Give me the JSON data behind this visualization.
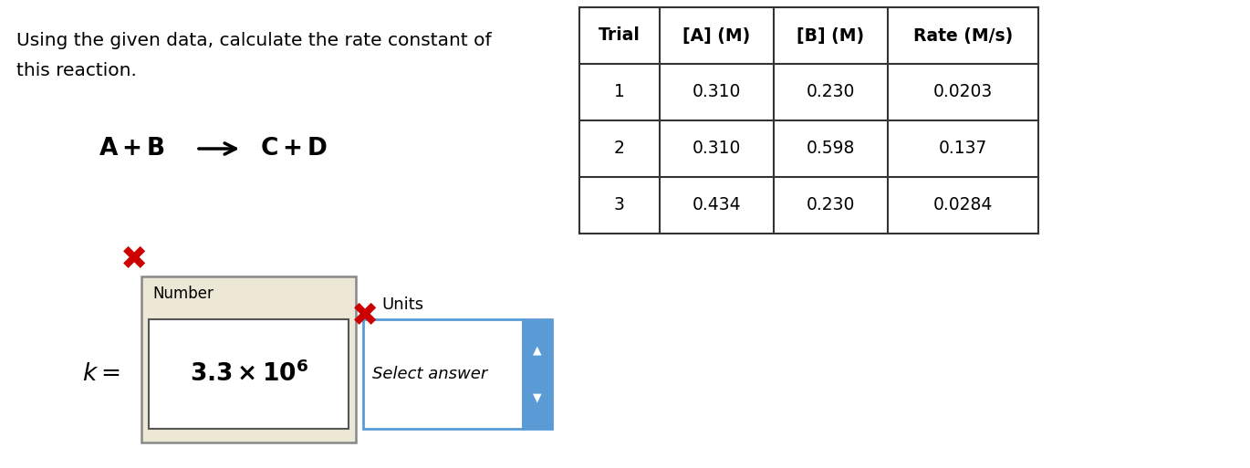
{
  "question_line1": "Using the given data, calculate the rate constant of",
  "question_line2": "this reaction.",
  "table_headers": [
    "Trial",
    "[A] (M)",
    "[B] (M)",
    "Rate (M/s)"
  ],
  "table_rows": [
    [
      "1",
      "0.310",
      "0.230",
      "0.0203"
    ],
    [
      "2",
      "0.310",
      "0.598",
      "0.137"
    ],
    [
      "3",
      "0.434",
      "0.230",
      "0.0284"
    ]
  ],
  "number_label": "Number",
  "units_label": "Units",
  "select_text": "Select answer",
  "bg_color": "#ffffff",
  "number_box_bg": "#ede8d5",
  "select_box_border": "#5b9bd5",
  "arrow_button_bg": "#5b9bd5",
  "text_color": "#000000",
  "red_x_color": "#cc0000",
  "table_border_color": "#333333",
  "inner_box_border": "#555555"
}
